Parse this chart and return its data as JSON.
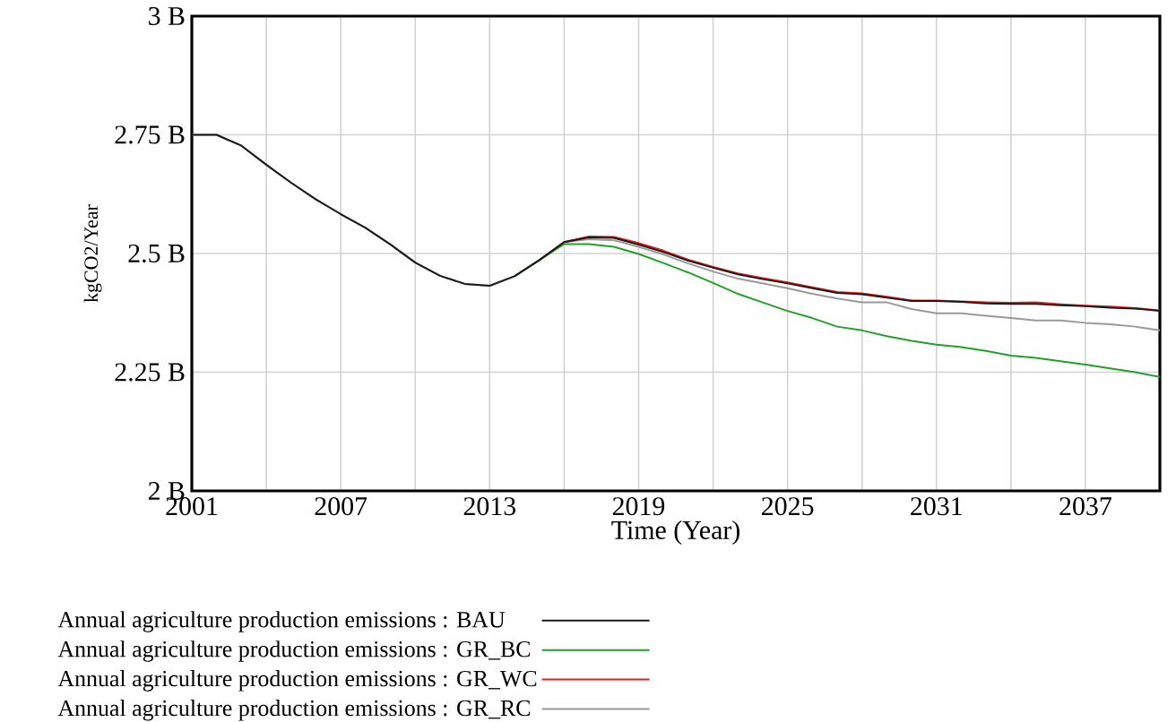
{
  "chart_data": {
    "type": "line",
    "xlabel": "Time (Year)",
    "ylabel": "kgCO2/Year",
    "x": [
      2001,
      2002,
      2003,
      2004,
      2005,
      2006,
      2007,
      2008,
      2009,
      2010,
      2011,
      2012,
      2013,
      2014,
      2015,
      2016,
      2017,
      2018,
      2019,
      2020,
      2021,
      2022,
      2023,
      2024,
      2025,
      2026,
      2027,
      2028,
      2029,
      2030,
      2031,
      2032,
      2033,
      2034,
      2035,
      2036,
      2037,
      2038,
      2039,
      2040
    ],
    "xlim": [
      2001,
      2040
    ],
    "xticks": [
      2001,
      {
        "value": 2004,
        "label": null
      },
      2007,
      {
        "value": 2010,
        "label": null
      },
      2013,
      {
        "value": 2016,
        "label": null
      },
      2019,
      {
        "value": 2022,
        "label": null
      },
      2025,
      {
        "value": 2028,
        "label": null
      },
      2031,
      {
        "value": 2034,
        "label": null
      },
      2037
    ],
    "ylim": [
      2,
      3
    ],
    "yticks": [
      {
        "value": 2,
        "label": "2 B"
      },
      {
        "value": 2.25,
        "label": "2.25 B"
      },
      {
        "value": 2.5,
        "label": "2.5 B"
      },
      {
        "value": 2.75,
        "label": "2.75 B"
      },
      {
        "value": 3,
        "label": "3 B"
      }
    ],
    "grid": true,
    "legend": "bottom",
    "series": [
      {
        "name": "Annual agriculture production emissions : BAU",
        "color": "#1a1a1a",
        "values": [
          2.75,
          2.75,
          2.727,
          2.687,
          2.649,
          2.614,
          2.583,
          2.554,
          2.519,
          2.481,
          2.453,
          2.436,
          2.432,
          2.452,
          2.486,
          2.524,
          2.534,
          2.533,
          2.519,
          2.503,
          2.485,
          2.47,
          2.456,
          2.446,
          2.437,
          2.427,
          2.417,
          2.414,
          2.407,
          2.4,
          2.4,
          2.398,
          2.395,
          2.394,
          2.394,
          2.391,
          2.389,
          2.386,
          2.384,
          2.379
        ]
      },
      {
        "name": "Annual agriculture production emissions : GR_BC",
        "color": "#22a02a",
        "values": [
          null,
          null,
          null,
          null,
          null,
          null,
          null,
          null,
          null,
          null,
          null,
          null,
          null,
          2.452,
          2.486,
          2.52,
          2.52,
          2.514,
          2.499,
          2.48,
          2.46,
          2.438,
          2.415,
          2.397,
          2.379,
          2.364,
          2.346,
          2.338,
          2.326,
          2.316,
          2.308,
          2.303,
          2.295,
          2.285,
          2.28,
          2.273,
          2.266,
          2.258,
          2.25,
          2.24
        ]
      },
      {
        "name": "Annual agriculture production emissions : GR_WC",
        "color": "#ee1c1c",
        "values": [
          null,
          null,
          null,
          null,
          null,
          null,
          null,
          null,
          null,
          null,
          null,
          null,
          null,
          null,
          2.486,
          2.524,
          2.536,
          2.535,
          2.522,
          2.506,
          2.487,
          2.472,
          2.458,
          2.448,
          2.439,
          2.429,
          2.419,
          2.416,
          2.409,
          2.401,
          2.401,
          2.399,
          2.397,
          2.396,
          2.397,
          2.393,
          2.39,
          2.388,
          2.385,
          2.38
        ]
      },
      {
        "name": "Annual agriculture production emissions : GR_RC",
        "color": "#999999",
        "values": [
          2.75,
          2.75,
          2.727,
          2.687,
          2.649,
          2.614,
          2.583,
          2.554,
          2.519,
          2.481,
          2.453,
          2.436,
          2.432,
          2.452,
          2.486,
          2.524,
          2.53,
          2.528,
          2.514,
          2.498,
          2.479,
          2.462,
          2.447,
          2.437,
          2.427,
          2.415,
          2.405,
          2.397,
          2.397,
          2.383,
          2.374,
          2.374,
          2.369,
          2.364,
          2.359,
          2.359,
          2.354,
          2.351,
          2.346,
          2.338
        ]
      }
    ]
  }
}
